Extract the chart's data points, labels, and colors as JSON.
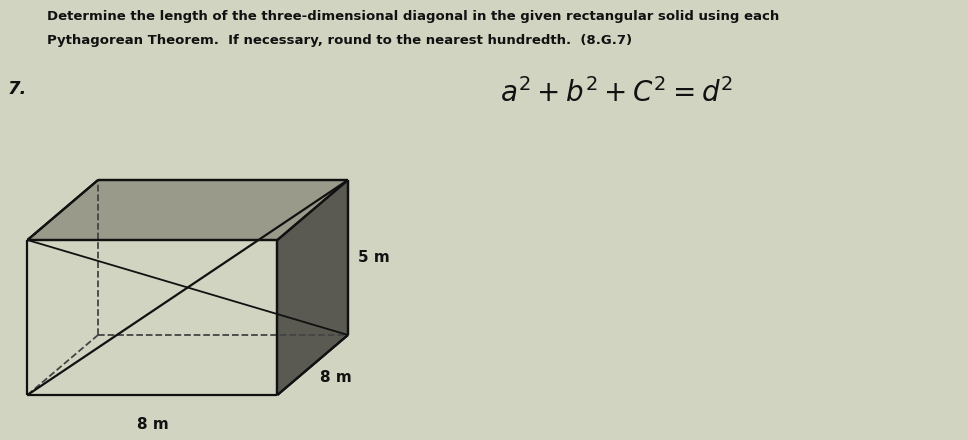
{
  "title_line1": "Determine the length of the three-dimensional diagonal in the given rectangular solid using each",
  "title_line2": "Pythagorean Theorem.  If necessary, round to the nearest hundredth.  (8.G.7)",
  "formula": "$a^2+b^2+C^2=d^2$",
  "label_bottom": "8 m",
  "label_side": "8 m",
  "label_height": "5 m",
  "problem_number": "7.",
  "bg_color": "#d0d4c0",
  "box_fill_right": "#5a5a52",
  "box_fill_top": "#9a9a8a",
  "text_color": "#111111",
  "title_fontsize": 9.5,
  "formula_fontsize": 20,
  "problem_fontsize": 13
}
